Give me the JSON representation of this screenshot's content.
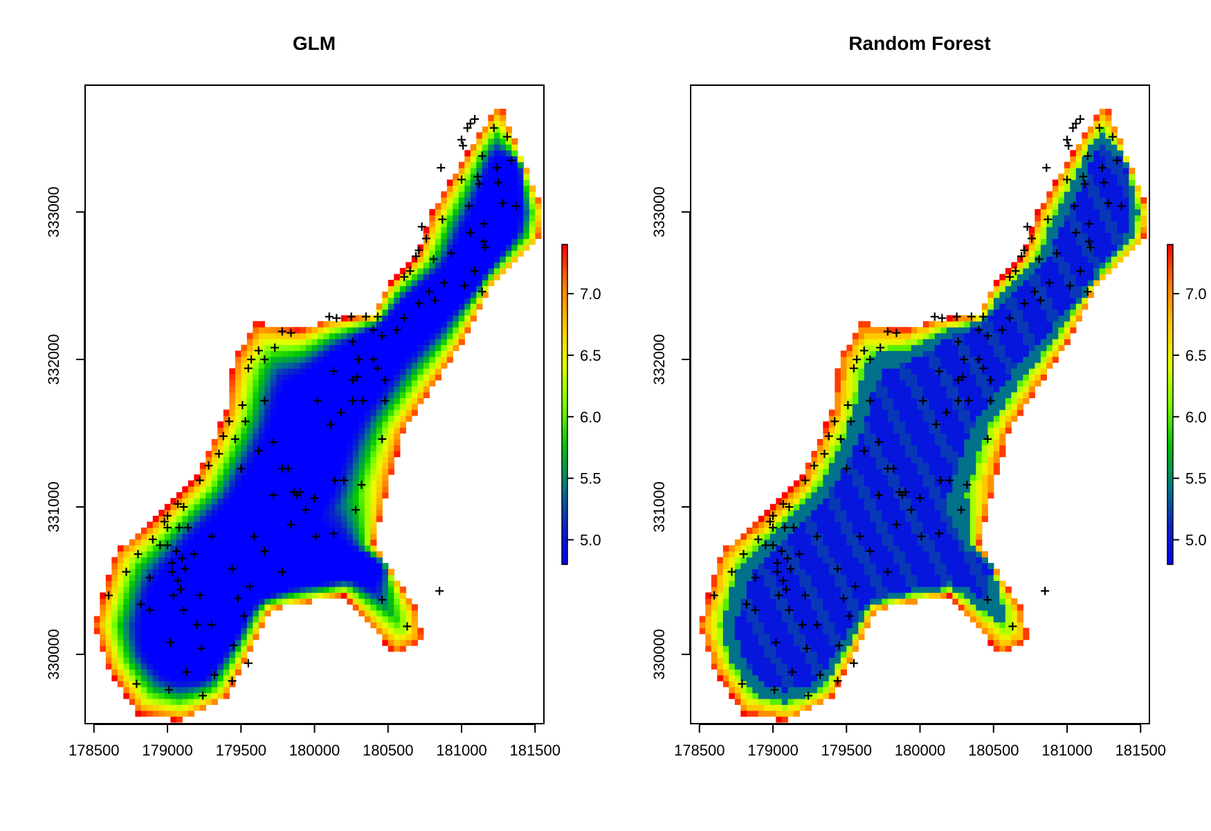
{
  "colors": {
    "ramp": [
      "#0000ff",
      "#0a23c8",
      "#007f7f",
      "#00c800",
      "#7fff00",
      "#e5ff00",
      "#ffc800",
      "#ff7f00",
      "#ff0000"
    ],
    "points": "#000000"
  },
  "chart_data": [
    {
      "type": "heatmap",
      "title": "GLM",
      "xlim": [
        178440,
        181560
      ],
      "ylim": [
        329530,
        333860
      ],
      "x_ticks": [
        178500,
        179000,
        179500,
        180000,
        180500,
        181000,
        181500
      ],
      "x_tick_labels": [
        "178500",
        "179000",
        "179500",
        "180000",
        "180500",
        "181000",
        "181500"
      ],
      "y_ticks": [
        330000,
        331000,
        332000,
        333000
      ],
      "y_tick_labels": [
        "330000",
        "331000",
        "332000",
        "333000"
      ],
      "colorbar": {
        "range": [
          4.8,
          7.4
        ],
        "ticks": [
          "5.0",
          "5.5",
          "6.0",
          "6.5",
          "7.0"
        ]
      },
      "value_model": "smooth",
      "grid": false,
      "legend": "colorbar-right"
    },
    {
      "type": "heatmap",
      "title": "Random Forest",
      "xlim": [
        178440,
        181560
      ],
      "ylim": [
        329530,
        333860
      ],
      "x_ticks": [
        178500,
        179000,
        179500,
        180000,
        180500,
        181000,
        181500
      ],
      "x_tick_labels": [
        "178500",
        "179000",
        "179500",
        "180000",
        "180500",
        "181000",
        "181500"
      ],
      "y_ticks": [
        330000,
        331000,
        332000,
        333000
      ],
      "y_tick_labels": [
        "330000",
        "331000",
        "332000",
        "333000"
      ],
      "colorbar": {
        "range": [
          4.8,
          7.4
        ],
        "ticks": [
          "5.0",
          "5.5",
          "6.0",
          "6.5",
          "7.0"
        ]
      },
      "value_model": "stepped",
      "grid": false,
      "legend": "colorbar-right"
    }
  ],
  "sample_points": [
    [
      178600,
      330400
    ],
    [
      178720,
      330560
    ],
    [
      178800,
      330680
    ],
    [
      178820,
      330340
    ],
    [
      178880,
      330520
    ],
    [
      178880,
      330300
    ],
    [
      178900,
      330780
    ],
    [
      178950,
      330740
    ],
    [
      178980,
      330900
    ],
    [
      179000,
      330860
    ],
    [
      179000,
      330740
    ],
    [
      179030,
      330620
    ],
    [
      179030,
      330560
    ],
    [
      179040,
      330400
    ],
    [
      179060,
      330700
    ],
    [
      179070,
      330500
    ],
    [
      179080,
      330860
    ],
    [
      179090,
      330440
    ],
    [
      179100,
      330650
    ],
    [
      179110,
      330300
    ],
    [
      179120,
      330580
    ],
    [
      179140,
      330860
    ],
    [
      179180,
      330680
    ],
    [
      179200,
      330200
    ],
    [
      179220,
      330400
    ],
    [
      179300,
      330200
    ],
    [
      179300,
      330800
    ],
    [
      179440,
      330580
    ],
    [
      179560,
      330460
    ],
    [
      179480,
      330380
    ],
    [
      179520,
      330260
    ],
    [
      179590,
      330800
    ],
    [
      179660,
      330700
    ],
    [
      179780,
      330560
    ],
    [
      178790,
      329800
    ],
    [
      179010,
      329760
    ],
    [
      179020,
      330080
    ],
    [
      179130,
      329880
    ],
    [
      179230,
      330040
    ],
    [
      179240,
      329720
    ],
    [
      179320,
      329860
    ],
    [
      179440,
      329820
    ],
    [
      179450,
      330060
    ],
    [
      179550,
      329940
    ],
    [
      179000,
      330940
    ],
    [
      179070,
      331020
    ],
    [
      179110,
      331000
    ],
    [
      179220,
      331180
    ],
    [
      179280,
      331280
    ],
    [
      179350,
      331360
    ],
    [
      179380,
      331480
    ],
    [
      179420,
      331580
    ],
    [
      179460,
      331460
    ],
    [
      179500,
      331260
    ],
    [
      179510,
      331690
    ],
    [
      179530,
      331580
    ],
    [
      179550,
      331940
    ],
    [
      179620,
      331380
    ],
    [
      179660,
      331720
    ],
    [
      179720,
      331440
    ],
    [
      179720,
      331080
    ],
    [
      179780,
      331260
    ],
    [
      179820,
      331260
    ],
    [
      179860,
      331100
    ],
    [
      179880,
      331080
    ],
    [
      179940,
      330980
    ],
    [
      180000,
      331060
    ],
    [
      180010,
      330800
    ],
    [
      179840,
      330880
    ],
    [
      180130,
      330820
    ],
    [
      180140,
      331180
    ],
    [
      180200,
      331180
    ],
    [
      180280,
      330980
    ],
    [
      180320,
      331150
    ],
    [
      180460,
      331460
    ],
    [
      180110,
      331560
    ],
    [
      180180,
      331640
    ],
    [
      180260,
      331720
    ],
    [
      180330,
      331720
    ],
    [
      180480,
      331720
    ],
    [
      180020,
      331720
    ],
    [
      180480,
      331860
    ],
    [
      180400,
      332000
    ],
    [
      180430,
      331940
    ],
    [
      180260,
      332120
    ],
    [
      180300,
      332000
    ],
    [
      180290,
      331880
    ],
    [
      180400,
      332200
    ],
    [
      180460,
      332160
    ],
    [
      180560,
      332200
    ],
    [
      180610,
      332280
    ],
    [
      180710,
      332380
    ],
    [
      180780,
      332460
    ],
    [
      180820,
      332400
    ],
    [
      180880,
      332520
    ],
    [
      181020,
      332500
    ],
    [
      181090,
      332600
    ],
    [
      181140,
      332460
    ],
    [
      181150,
      332800
    ],
    [
      181160,
      332760
    ],
    [
      181060,
      332860
    ],
    [
      181150,
      332920
    ],
    [
      180610,
      332560
    ],
    [
      180650,
      332600
    ],
    [
      180690,
      332700
    ],
    [
      180710,
      332740
    ],
    [
      180810,
      332680
    ],
    [
      180930,
      332720
    ],
    [
      180760,
      332820
    ],
    [
      180730,
      332900
    ],
    [
      180870,
      332950
    ],
    [
      181050,
      333040
    ],
    [
      181280,
      333060
    ],
    [
      181370,
      333040
    ],
    [
      181250,
      333200
    ],
    [
      181000,
      333220
    ],
    [
      181110,
      333240
    ],
    [
      181120,
      333190
    ],
    [
      181240,
      333300
    ],
    [
      181340,
      333350
    ],
    [
      181140,
      333380
    ],
    [
      181310,
      333510
    ],
    [
      180860,
      333300
    ],
    [
      181010,
      333450
    ],
    [
      181000,
      333490
    ],
    [
      181040,
      333570
    ],
    [
      181090,
      333630
    ],
    [
      181060,
      333600
    ],
    [
      181220,
      333570
    ],
    [
      180100,
      332290
    ],
    [
      180150,
      332280
    ],
    [
      180250,
      332290
    ],
    [
      180350,
      332290
    ],
    [
      180430,
      332290
    ],
    [
      180260,
      331860
    ],
    [
      180130,
      331920
    ],
    [
      179840,
      332180
    ],
    [
      179780,
      332190
    ],
    [
      179730,
      332080
    ],
    [
      179620,
      332060
    ],
    [
      179660,
      332000
    ],
    [
      179570,
      332000
    ],
    [
      180460,
      330370
    ],
    [
      180630,
      330190
    ],
    [
      180850,
      330430
    ],
    [
      179900,
      331100
    ]
  ]
}
